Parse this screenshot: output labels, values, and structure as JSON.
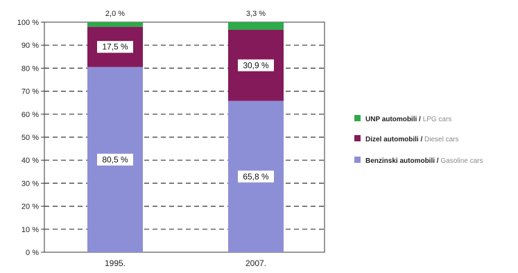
{
  "chart_data": {
    "type": "bar",
    "stacked": true,
    "categories": [
      "1995.",
      "2007."
    ],
    "series": [
      {
        "name": "Benzinski automobili / Gasoline cars",
        "main": "Benzinski automobili",
        "sub": "Gasoline cars",
        "values": [
          80.5,
          65.8
        ],
        "labels": [
          "80,5 %",
          "65,8 %"
        ],
        "color": "#8d8fd6"
      },
      {
        "name": "Dizel automobili / Diesel cars",
        "main": "Dizel automobili",
        "sub": "Diesel cars",
        "values": [
          17.5,
          30.9
        ],
        "labels": [
          "17,5 %",
          "30,9 %"
        ],
        "color": "#851a5b"
      },
      {
        "name": "UNP automobili / LPG cars",
        "main": "UNP automobili",
        "sub": "LPG cars",
        "values": [
          2.0,
          3.3
        ],
        "labels": [
          "2,0 %",
          "3,3 %"
        ],
        "color": "#2eaa4a"
      }
    ],
    "ylim": [
      0,
      100
    ],
    "yticks": [
      "0 %",
      "10 %",
      "20 %",
      "30 %",
      "40 %",
      "50 %",
      "60 %",
      "70 %",
      "80 %",
      "90 %",
      "100 %"
    ],
    "grid": "dashed horizontal",
    "legend": "right",
    "legend_order": [
      2,
      1,
      0
    ]
  }
}
